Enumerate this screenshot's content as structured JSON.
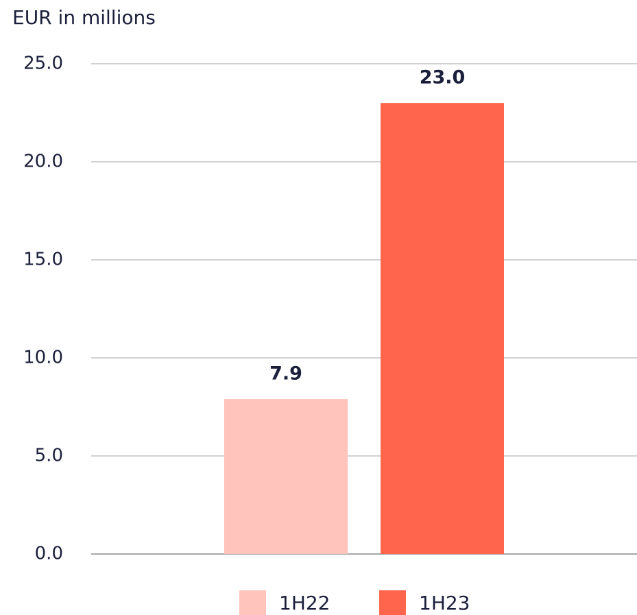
{
  "chart_data": {
    "type": "bar",
    "ylabel": "EUR in millions",
    "categories": [
      null
    ],
    "series": [
      {
        "name": "1H22",
        "color": "#ffc4bb",
        "values": [
          7.9
        ],
        "value_labels": [
          "7.9"
        ]
      },
      {
        "name": "1H23",
        "color": "#ff644c",
        "values": [
          23
        ],
        "value_labels": [
          "23.0"
        ]
      }
    ],
    "ylim": [
      0,
      25
    ],
    "yticks": [
      {
        "value": 0,
        "label": "0.0"
      },
      {
        "value": 5,
        "label": "5.0"
      },
      {
        "value": 10,
        "label": "10.0"
      },
      {
        "value": 15,
        "label": "15.0"
      },
      {
        "value": 20,
        "label": "20.0"
      },
      {
        "value": 25,
        "label": "25.0"
      }
    ],
    "grid": true,
    "legend": "bottom"
  }
}
